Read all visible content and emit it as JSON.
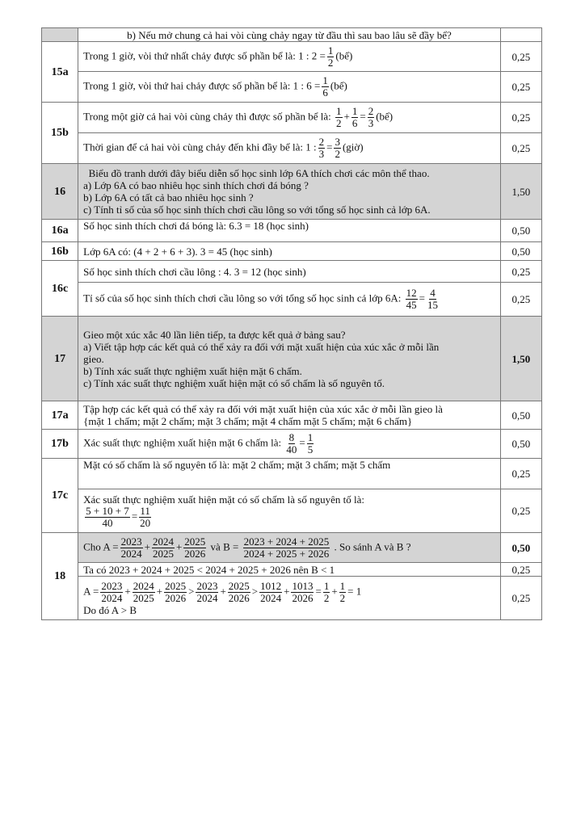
{
  "rows": [
    {
      "label": "",
      "label_shaded": true,
      "cells": [
        {
          "height": 17,
          "align": "center",
          "lines": [
            [
              "b) Nếu mở chung cả hai vòi cùng chảy ngay từ đầu thì sau bao lâu sẽ đầy bể?"
            ]
          ],
          "score": ""
        }
      ]
    },
    {
      "label": "15a",
      "cells": [
        {
          "height": 37,
          "lines": [
            [
              "Trong 1 giờ, vòi thứ nhất chảy được số phần bể là:  1 : 2 =",
              {
                "n": "1",
                "d": "2"
              },
              "(bể)"
            ]
          ],
          "score": "0,25"
        },
        {
          "height": 38,
          "lines": [
            [
              "Trong 1 giờ, vòi thứ hai chảy được số phần bể là: 1 : 6 =",
              {
                "n": "1",
                "d": "6"
              },
              "(bể)"
            ]
          ],
          "score": "0,25"
        }
      ]
    },
    {
      "label": "15b",
      "cells": [
        {
          "height": 38,
          "lines": [
            [
              "Trong một giờ cả hai vòi cùng chảy thì được số phần bể là: ",
              {
                "n": "1",
                "d": "2"
              },
              "+",
              {
                "n": "1",
                "d": "6"
              },
              "=",
              {
                "n": "2",
                "d": "3"
              },
              "(bể)"
            ]
          ],
          "score": "0,25"
        },
        {
          "height": 38,
          "lines": [
            [
              "Thời gian để cả hai vòi cùng chảy đến khi đầy bể là: 1 :",
              {
                "n": "2",
                "d": "3"
              },
              "=",
              {
                "n": "3",
                "d": "2"
              },
              "(giờ)"
            ]
          ],
          "score": "0,25"
        }
      ]
    },
    {
      "label": "16",
      "shaded": true,
      "cells": [
        {
          "height": 69,
          "lines": [
            [
              "  Biểu đồ tranh dưới đây biểu diễn số học sinh lớp 6A thích chơi các môn thể thao."
            ],
            [
              "a) Lớp 6A có bao nhiêu học sinh thích chơi đá bóng ?"
            ],
            [
              "b) Lớp 6A có tất cả bao nhiêu học sinh ?"
            ],
            [
              "c) Tính tỉ số của số học sinh thích chơi cầu lông so với tổng số học sinh cả lớp 6A."
            ]
          ],
          "score": "1,50"
        }
      ]
    },
    {
      "label": "16a",
      "cells": [
        {
          "height": 28,
          "lines": [
            [
              "Số học sinh thích chơi đá bóng là: 6.3 = 18 (học sinh)"
            ]
          ],
          "score": "0,50",
          "valign": "top"
        }
      ]
    },
    {
      "label": "16b",
      "cells": [
        {
          "height": 23,
          "lines": [
            [
              "Lớp 6A có: (4 + 2 + 6 + 3). 3 = 45 (học sinh)"
            ]
          ],
          "score": "0,50"
        }
      ]
    },
    {
      "label": "16c",
      "cells": [
        {
          "height": 27,
          "lines": [
            [
              "Số học sinh thích chơi cầu lông : 4. 3 = 12 (học sinh)"
            ]
          ],
          "score": "0,25"
        },
        {
          "height": 42,
          "lines": [
            [
              "Tỉ số của số học sinh thích chơi cầu lông so với tổng số học sinh cả lớp 6A: ",
              {
                "n": "12",
                "d": "45"
              },
              "=",
              {
                "n": "4",
                "d": "15"
              }
            ]
          ],
          "score": "0,25"
        }
      ]
    },
    {
      "label": "17",
      "shaded": true,
      "score_bold": true,
      "cells": [
        {
          "height": 105,
          "lines": [
            [
              "Gieo một xúc xắc 40 lần liên tiếp, ta được kết quả ở bảng sau?"
            ],
            [
              "a) Viết tập hợp các kết quả có thể xảy ra đối với mặt xuất hiện của xúc xắc ở mỗi lần"
            ],
            [
              "gieo."
            ],
            [
              "b) Tính xác suất thực nghiệm xuất hiện mặt 6 chấm."
            ],
            [
              "c) Tính xác suất thực nghiệm xuất hiện mặt có số chấm là số nguyên tố."
            ]
          ],
          "score": "1,50"
        }
      ]
    },
    {
      "label": "17a",
      "cells": [
        {
          "height": 35,
          "lines": [
            [
              "Tập hợp các kết quả có thể xảy ra đối với mặt xuất hiện của xúc xắc ở mỗi lần gieo là"
            ],
            [
              "{mặt 1 chấm; mặt 2 chấm; mặt 3 chấm; mặt 4 chấm mặt 5 chấm; mặt 6 chấm}"
            ]
          ],
          "score": "0,50"
        }
      ]
    },
    {
      "label": "17b",
      "cells": [
        {
          "height": 36,
          "lines": [
            [
              "Xác suất thực nghiệm xuất hiện mặt 6 chấm là: ",
              {
                "n": "8",
                "d": "40"
              },
              "=",
              {
                "n": "1",
                "d": "5"
              }
            ]
          ],
          "score": "0,50"
        }
      ]
    },
    {
      "label": "17c",
      "cells": [
        {
          "height": 38,
          "lines": [
            [
              "Mặt có số chấm là số nguyên tố là: mặt 2 chấm; mặt 3 chấm; mặt 5 chấm"
            ]
          ],
          "score": "0,25",
          "valign": "top"
        },
        {
          "height": 54,
          "lines": [
            [
              "Xác suất thực nghiệm xuất hiện mặt có số chấm là số nguyên tố là:"
            ],
            [
              {
                "n": "5 + 10 + 7",
                "d": "40"
              },
              "=",
              {
                "n": "11",
                "d": "20"
              }
            ]
          ],
          "score": "0,25"
        }
      ]
    },
    {
      "label": "18",
      "cells": [
        {
          "height": 37,
          "shaded": true,
          "score_bold": true,
          "lines": [
            [
              "Cho  A =",
              {
                "n": "2023",
                "d": "2024"
              },
              "+",
              {
                "n": "2024",
                "d": "2025"
              },
              "+",
              {
                "n": "2025",
                "d": "2026"
              },
              "  và  B  =  ",
              {
                "n": "2023 + 2024 + 2025",
                "d": "2024 + 2025 + 2026"
              },
              "  . So sánh A và B ?"
            ]
          ],
          "score": "0,50"
        },
        {
          "height": 17,
          "lines": [
            [
              "Ta có  2023 + 2024 + 2025 < 2024 + 2025 + 2026 nên B < 1"
            ]
          ],
          "score": "0,25"
        },
        {
          "height": 54,
          "lines": [
            [
              "A =",
              {
                "n": "2023",
                "d": "2024"
              },
              "+",
              {
                "n": "2024",
                "d": "2025"
              },
              "+",
              {
                "n": "2025",
                "d": "2026"
              },
              ">",
              {
                "n": "2023",
                "d": "2024"
              },
              "+",
              {
                "n": "2025",
                "d": "2026"
              },
              ">",
              {
                "n": "1012",
                "d": "2024"
              },
              "+",
              {
                "n": "1013",
                "d": "2026"
              },
              "=",
              {
                "n": "1",
                "d": "2"
              },
              "+",
              {
                "n": "1",
                "d": "2"
              },
              "= 1"
            ],
            [
              "Do đó A > B"
            ]
          ],
          "score": "0,25",
          "score_valign": "bottom"
        }
      ]
    }
  ]
}
